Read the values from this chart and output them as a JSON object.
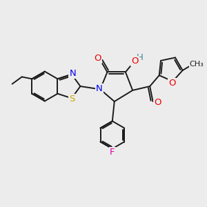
{
  "bg_color": "#ececec",
  "bond_color": "#1a1a1a",
  "bond_width": 1.4,
  "atom_colors": {
    "N": "#0000ee",
    "O": "#ee0000",
    "S": "#ccaa00",
    "F": "#dd00aa",
    "H": "#448899"
  },
  "font_size": 8.5,
  "fig_size": [
    3.0,
    3.0
  ],
  "dpi": 100
}
